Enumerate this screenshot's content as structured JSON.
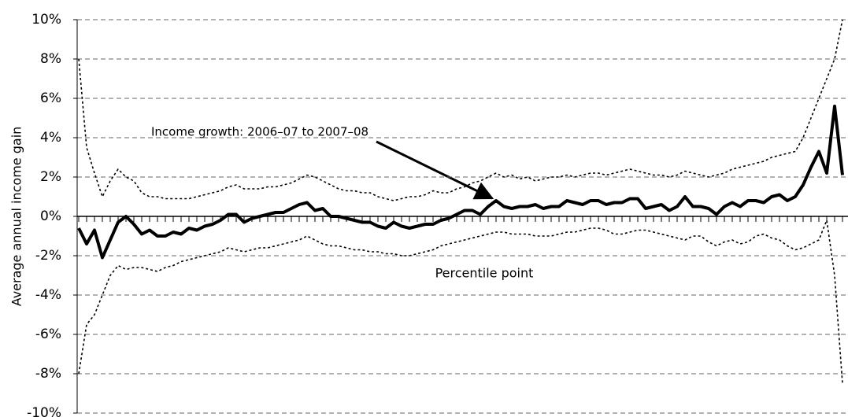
{
  "chart_data": {
    "type": "line",
    "ylabel": "Average annual income gain",
    "xlabel": "Percentile point",
    "annotation": "Income growth: 2006–07 to 2007–08",
    "x": [
      1,
      2,
      3,
      4,
      5,
      6,
      7,
      8,
      9,
      10,
      11,
      12,
      13,
      14,
      15,
      16,
      17,
      18,
      19,
      20,
      21,
      22,
      23,
      24,
      25,
      26,
      27,
      28,
      29,
      30,
      31,
      32,
      33,
      34,
      35,
      36,
      37,
      38,
      39,
      40,
      41,
      42,
      43,
      44,
      45,
      46,
      47,
      48,
      49,
      50,
      51,
      52,
      53,
      54,
      55,
      56,
      57,
      58,
      59,
      60,
      61,
      62,
      63,
      64,
      65,
      66,
      67,
      68,
      69,
      70,
      71,
      72,
      73,
      74,
      75,
      76,
      77,
      78,
      79,
      80,
      81,
      82,
      83,
      84,
      85,
      86,
      87,
      88,
      89,
      90,
      91,
      92,
      93,
      94,
      95,
      96,
      97,
      98
    ],
    "xlim": [
      0.8,
      98.7
    ],
    "ylim": [
      -10,
      10
    ],
    "yticks": [
      {
        "value": -10,
        "label": "-10%"
      },
      {
        "value": -8,
        "label": "-8%"
      },
      {
        "value": -6,
        "label": "-6%"
      },
      {
        "value": -4,
        "label": "-4%"
      },
      {
        "value": -2,
        "label": "-2%"
      },
      {
        "value": 0,
        "label": "0%"
      },
      {
        "value": 2,
        "label": "2%"
      },
      {
        "value": 4,
        "label": "4%"
      },
      {
        "value": 6,
        "label": "6%"
      },
      {
        "value": 8,
        "label": "8%"
      },
      {
        "value": 10,
        "label": "10%"
      }
    ],
    "grid": true,
    "series": [
      {
        "color": "#000000",
        "style": "solid",
        "values": [
          -0.6,
          -1.4,
          -0.7,
          -2.1,
          -1.2,
          -0.3,
          0,
          -0.4,
          -0.9,
          -0.7,
          -1.0,
          -1.0,
          -0.8,
          -0.9,
          -0.6,
          -0.7,
          -0.5,
          -0.4,
          -0.2,
          0.1,
          0.1,
          -0.3,
          -0.1,
          0,
          0.1,
          0.2,
          0.2,
          0.4,
          0.6,
          0.7,
          0.3,
          0.4,
          0,
          0,
          -0.1,
          -0.2,
          -0.3,
          -0.3,
          -0.5,
          -0.6,
          -0.3,
          -0.5,
          -0.6,
          -0.5,
          -0.4,
          -0.4,
          -0.2,
          -0.1,
          0.1,
          0.3,
          0.3,
          0.1,
          0.5,
          0.8,
          0.5,
          0.4,
          0.5,
          0.5,
          0.6,
          0.4,
          0.5,
          0.5,
          0.8,
          0.7,
          0.6,
          0.8,
          0.8,
          0.6,
          0.7,
          0.7,
          0.9,
          0.9,
          0.4,
          0.5,
          0.6,
          0.3,
          0.5,
          1.0,
          0.5,
          0.5,
          0.4,
          0.1,
          0.5,
          0.7,
          0.5,
          0.8,
          0.8,
          0.7,
          1.0,
          1.1,
          0.8,
          1.0,
          1.6,
          2.5,
          3.3,
          2.2,
          5.6,
          2.1
        ]
      },
      {
        "color": "#000000",
        "style": "dashed",
        "values": [
          8,
          3.5,
          2.2,
          1.0,
          1.8,
          2.4,
          2.0,
          1.8,
          1.2,
          1.0,
          1.0,
          0.9,
          0.9,
          0.9,
          0.9,
          1.0,
          1.1,
          1.2,
          1.3,
          1.5,
          1.6,
          1.4,
          1.4,
          1.4,
          1.5,
          1.5,
          1.6,
          1.7,
          1.9,
          2.1,
          2.0,
          1.8,
          1.6,
          1.4,
          1.3,
          1.3,
          1.2,
          1.2,
          1.0,
          0.9,
          0.8,
          0.9,
          1.0,
          1.0,
          1.1,
          1.3,
          1.2,
          1.2,
          1.4,
          1.5,
          1.7,
          1.8,
          2.0,
          2.2,
          2.0,
          2.1,
          1.9,
          2.0,
          1.8,
          1.9,
          2.0,
          2.0,
          2.1,
          2.0,
          2.1,
          2.2,
          2.2,
          2.1,
          2.2,
          2.3,
          2.4,
          2.3,
          2.2,
          2.1,
          2.1,
          2.0,
          2.1,
          2.3,
          2.2,
          2.1,
          2.0,
          2.1,
          2.2,
          2.4,
          2.5,
          2.6,
          2.7,
          2.8,
          3.0,
          3.1,
          3.2,
          3.3,
          4.0,
          5.0,
          6.0,
          7.0,
          8.0,
          10.0
        ]
      },
      {
        "color": "#000000",
        "style": "dashed",
        "values": [
          -8,
          -5.5,
          -5.0,
          -4.0,
          -3.0,
          -2.5,
          -2.7,
          -2.6,
          -2.6,
          -2.7,
          -2.8,
          -2.6,
          -2.5,
          -2.3,
          -2.2,
          -2.1,
          -2.0,
          -1.9,
          -1.8,
          -1.6,
          -1.7,
          -1.8,
          -1.7,
          -1.6,
          -1.6,
          -1.5,
          -1.4,
          -1.3,
          -1.2,
          -1.0,
          -1.2,
          -1.4,
          -1.5,
          -1.5,
          -1.6,
          -1.7,
          -1.7,
          -1.8,
          -1.8,
          -1.9,
          -1.9,
          -2.0,
          -2.0,
          -1.9,
          -1.8,
          -1.7,
          -1.5,
          -1.4,
          -1.3,
          -1.2,
          -1.1,
          -1.0,
          -0.9,
          -0.8,
          -0.8,
          -0.9,
          -0.9,
          -0.9,
          -1.0,
          -1.0,
          -1.0,
          -0.9,
          -0.8,
          -0.8,
          -0.7,
          -0.6,
          -0.6,
          -0.7,
          -0.9,
          -0.9,
          -0.8,
          -0.7,
          -0.7,
          -0.8,
          -0.9,
          -1.0,
          -1.1,
          -1.2,
          -1.0,
          -1.0,
          -1.3,
          -1.5,
          -1.3,
          -1.2,
          -1.4,
          -1.3,
          -1.0,
          -0.9,
          -1.1,
          -1.2,
          -1.5,
          -1.7,
          -1.6,
          -1.4,
          -1.2,
          -0.2,
          -3.0,
          -8.5
        ]
      }
    ]
  }
}
